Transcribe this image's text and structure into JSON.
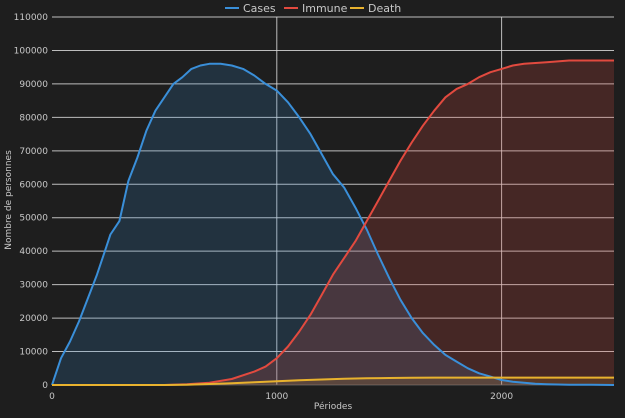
{
  "colors": {
    "background": "#1e1e1e",
    "grid": "#d9d9d9",
    "axis_text": "#c8c8c8"
  },
  "chart_data": {
    "type": "area",
    "xlabel": "Périodes",
    "ylabel": "Nombre de personnes",
    "xlim": [
      0,
      2500
    ],
    "ylim": [
      0,
      110000
    ],
    "x_ticks": [
      0,
      1000,
      2000
    ],
    "y_ticks": [
      0,
      10000,
      20000,
      30000,
      40000,
      50000,
      60000,
      70000,
      80000,
      90000,
      100000,
      110000
    ],
    "grid": true,
    "legend": "top-center",
    "series": [
      {
        "name": "Cases",
        "color": "#3a8fd9",
        "fill": "rgba(58,143,217,0.18)",
        "points": [
          [
            0,
            0
          ],
          [
            40,
            8000
          ],
          [
            80,
            13000
          ],
          [
            120,
            19000
          ],
          [
            160,
            26000
          ],
          [
            200,
            33000
          ],
          [
            240,
            41000
          ],
          [
            260,
            45000
          ],
          [
            280,
            47000
          ],
          [
            300,
            49000
          ],
          [
            320,
            55000
          ],
          [
            340,
            61000
          ],
          [
            380,
            68000
          ],
          [
            420,
            76000
          ],
          [
            460,
            82000
          ],
          [
            500,
            86000
          ],
          [
            540,
            90000
          ],
          [
            580,
            92000
          ],
          [
            620,
            94500
          ],
          [
            660,
            95500
          ],
          [
            700,
            96000
          ],
          [
            750,
            96000
          ],
          [
            800,
            95500
          ],
          [
            850,
            94500
          ],
          [
            900,
            92500
          ],
          [
            950,
            90000
          ],
          [
            1000,
            88000
          ],
          [
            1050,
            84500
          ],
          [
            1100,
            80000
          ],
          [
            1150,
            75000
          ],
          [
            1200,
            69000
          ],
          [
            1250,
            63000
          ],
          [
            1300,
            59000
          ],
          [
            1350,
            53000
          ],
          [
            1400,
            46500
          ],
          [
            1450,
            39000
          ],
          [
            1500,
            32000
          ],
          [
            1550,
            25500
          ],
          [
            1600,
            20000
          ],
          [
            1650,
            15500
          ],
          [
            1700,
            12000
          ],
          [
            1750,
            9000
          ],
          [
            1800,
            7000
          ],
          [
            1850,
            5000
          ],
          [
            1900,
            3500
          ],
          [
            1950,
            2500
          ],
          [
            2000,
            1500
          ],
          [
            2050,
            1000
          ],
          [
            2100,
            700
          ],
          [
            2150,
            400
          ],
          [
            2200,
            250
          ],
          [
            2300,
            100
          ],
          [
            2400,
            50
          ],
          [
            2500,
            0
          ]
        ]
      },
      {
        "name": "Immune",
        "color": "#e24a3f",
        "fill": "rgba(226,74,63,0.2)",
        "points": [
          [
            0,
            0
          ],
          [
            500,
            0
          ],
          [
            600,
            200
          ],
          [
            700,
            700
          ],
          [
            800,
            1800
          ],
          [
            900,
            4000
          ],
          [
            950,
            5500
          ],
          [
            1000,
            8000
          ],
          [
            1050,
            11500
          ],
          [
            1100,
            16000
          ],
          [
            1150,
            21000
          ],
          [
            1200,
            27000
          ],
          [
            1250,
            33000
          ],
          [
            1300,
            38000
          ],
          [
            1350,
            43000
          ],
          [
            1400,
            49000
          ],
          [
            1450,
            55000
          ],
          [
            1500,
            61000
          ],
          [
            1550,
            67000
          ],
          [
            1600,
            72500
          ],
          [
            1650,
            77500
          ],
          [
            1700,
            82000
          ],
          [
            1750,
            86000
          ],
          [
            1800,
            88500
          ],
          [
            1850,
            90000
          ],
          [
            1900,
            92000
          ],
          [
            1950,
            93500
          ],
          [
            2000,
            94500
          ],
          [
            2050,
            95500
          ],
          [
            2100,
            96000
          ],
          [
            2200,
            96500
          ],
          [
            2300,
            97000
          ],
          [
            2400,
            97000
          ],
          [
            2500,
            97000
          ]
        ]
      },
      {
        "name": "Death",
        "color": "#e8b22e",
        "fill": "rgba(232,178,46,0.12)",
        "points": [
          [
            0,
            0
          ],
          [
            500,
            0
          ],
          [
            600,
            100
          ],
          [
            700,
            300
          ],
          [
            800,
            500
          ],
          [
            900,
            800
          ],
          [
            1000,
            1100
          ],
          [
            1100,
            1400
          ],
          [
            1200,
            1650
          ],
          [
            1300,
            1850
          ],
          [
            1400,
            2000
          ],
          [
            1500,
            2100
          ],
          [
            1600,
            2150
          ],
          [
            1700,
            2200
          ],
          [
            1800,
            2200
          ],
          [
            2000,
            2200
          ],
          [
            2200,
            2200
          ],
          [
            2500,
            2200
          ]
        ]
      }
    ]
  }
}
